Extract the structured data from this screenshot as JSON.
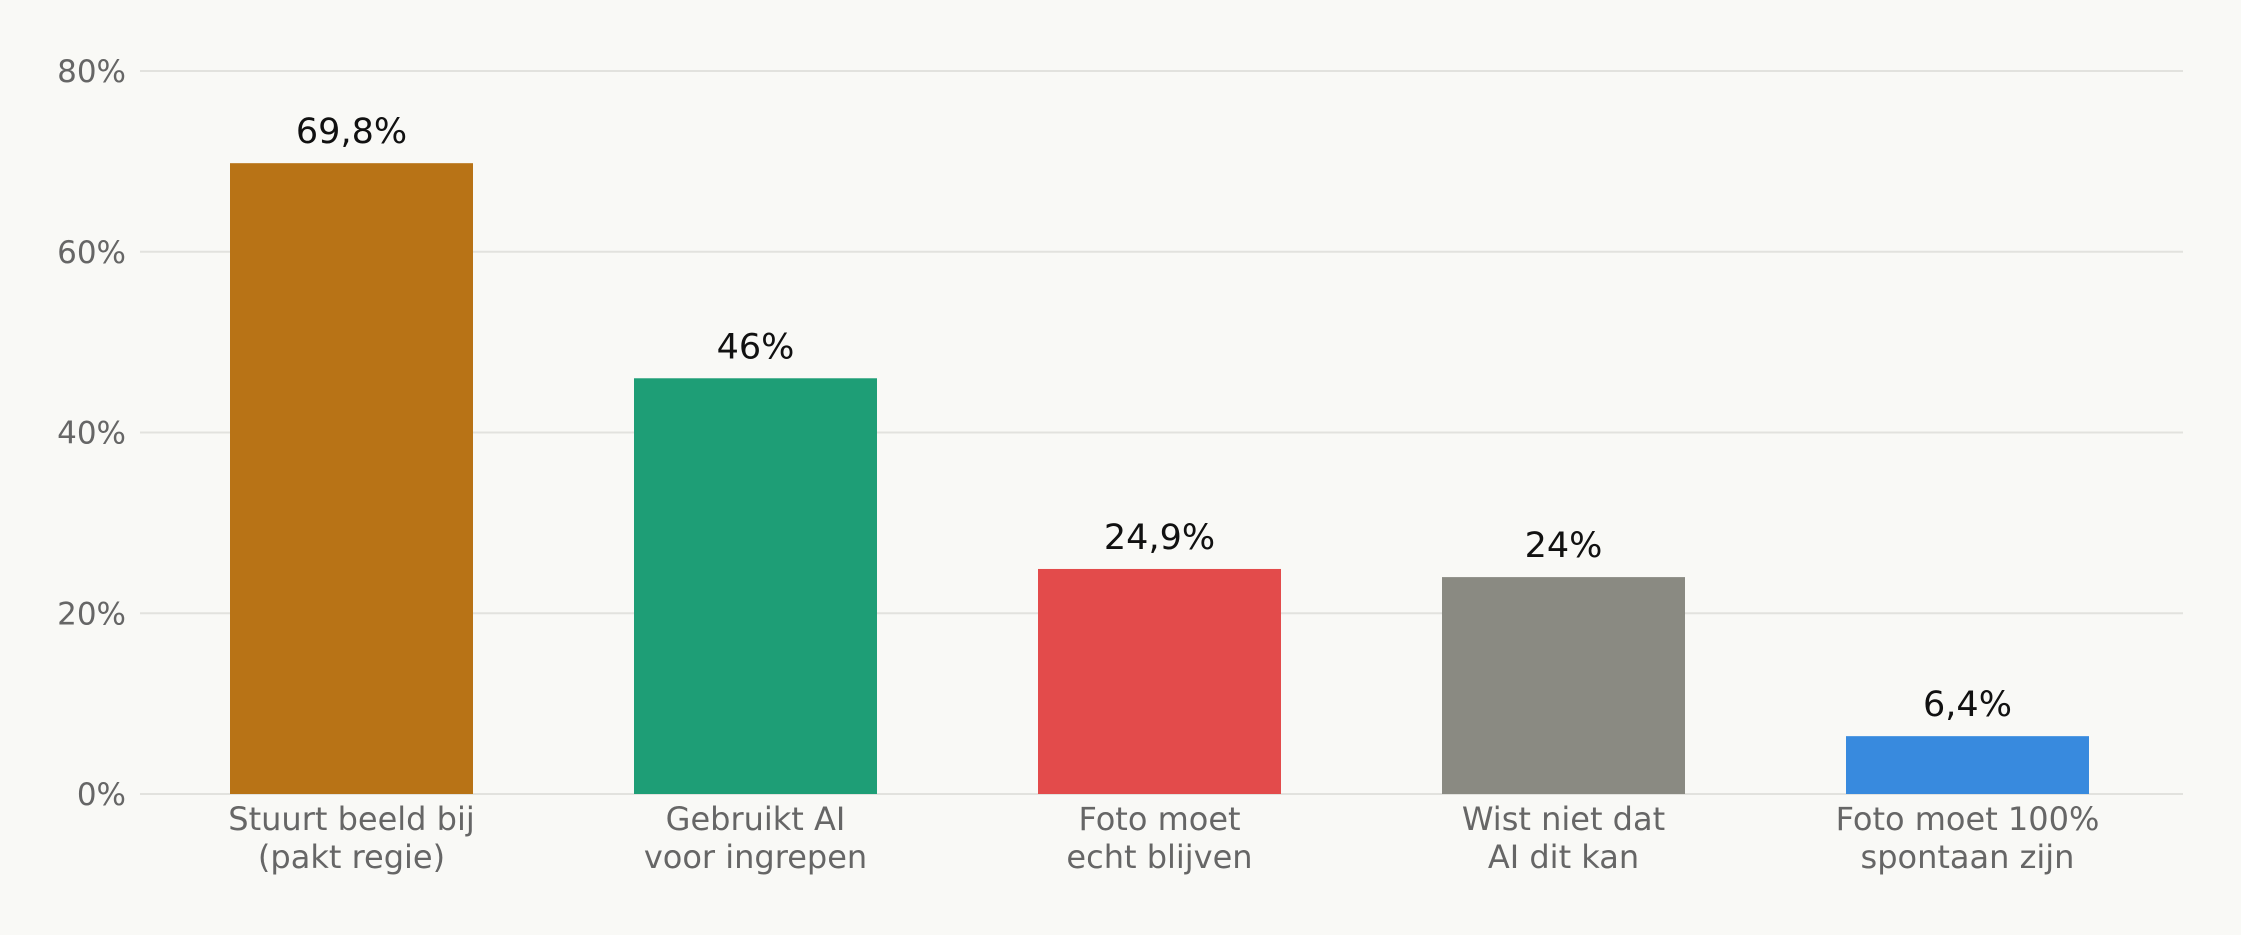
{
  "chart_data": {
    "type": "bar",
    "title": "",
    "xlabel": "",
    "ylabel": "",
    "ylim": [
      0,
      80
    ],
    "yticks": [
      {
        "value": 0,
        "label": "0%"
      },
      {
        "value": 20,
        "label": "20%"
      },
      {
        "value": 40,
        "label": "40%"
      },
      {
        "value": 60,
        "label": "60%"
      },
      {
        "value": 80,
        "label": "80%"
      }
    ],
    "grid": true,
    "categories": [
      [
        "Stuurt beeld bij",
        "(pakt regie)"
      ],
      [
        "Gebruikt AI",
        "voor ingrepen"
      ],
      [
        "Foto moet",
        "echt blijven"
      ],
      [
        "Wist niet dat",
        "AI dit kan"
      ],
      [
        "Foto moet 100%",
        "spontaan zijn"
      ]
    ],
    "values": [
      69.8,
      46,
      24.9,
      24,
      6.4
    ],
    "data_labels": [
      "69,8%",
      "46%",
      "24,9%",
      "24%",
      "6,4%"
    ],
    "colors": [
      "#b87316",
      "#1e9e76",
      "#e34b4b",
      "#8a8a82",
      "#388ade"
    ]
  }
}
